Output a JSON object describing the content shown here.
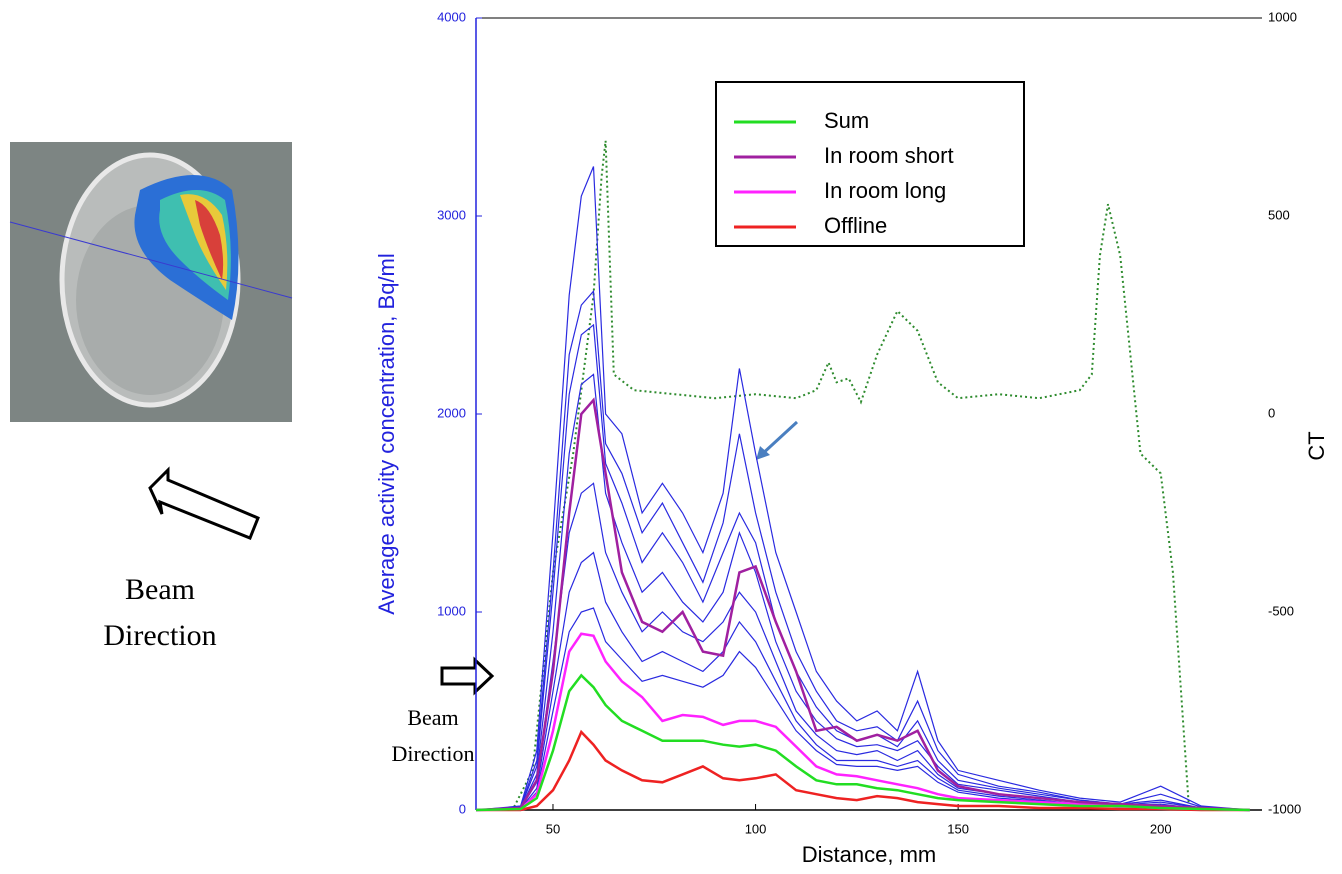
{
  "chart_data": {
    "type": "line",
    "y_label": "Average activity concentration, Bq/ml",
    "x_label": "Distance, mm",
    "y2_label": "CT",
    "y_axis_color": "#2222dd",
    "y2_axis_color": "#2e8b2e",
    "annotations": [
      {
        "lines": [
          "Beam",
          "Direction"
        ]
      },
      {
        "lines": [
          "Beam",
          "Direction"
        ]
      }
    ],
    "xlim": [
      31,
      225
    ],
    "xticks": [
      50,
      100,
      150,
      200
    ],
    "ylim": [
      0,
      4000
    ],
    "yticks": [
      0,
      1000,
      2000,
      3000,
      4000
    ],
    "y2lim": [
      -1000,
      1000
    ],
    "y2ticks": [
      -1000,
      -500,
      0,
      500,
      1000
    ],
    "x": [
      31,
      42,
      46,
      50,
      54,
      57,
      60,
      63,
      67,
      72,
      77,
      82,
      87,
      92,
      96,
      100,
      105,
      110,
      115,
      120,
      125,
      130,
      135,
      140,
      145,
      150,
      160,
      170,
      180,
      190,
      200,
      210,
      222
    ],
    "series": [
      {
        "name": "Sum",
        "color": "#22dd22",
        "values": [
          0,
          5,
          60,
          300,
          600,
          680,
          620,
          530,
          450,
          400,
          350,
          350,
          350,
          330,
          320,
          330,
          300,
          220,
          150,
          130,
          130,
          110,
          100,
          80,
          60,
          50,
          40,
          30,
          20,
          20,
          10,
          5,
          0
        ]
      },
      {
        "name": "In room short",
        "color": "#a020a0",
        "values": [
          0,
          10,
          150,
          700,
          1500,
          2000,
          2070,
          1700,
          1200,
          950,
          900,
          1000,
          800,
          780,
          1200,
          1230,
          950,
          700,
          400,
          420,
          350,
          380,
          350,
          400,
          200,
          120,
          80,
          60,
          40,
          30,
          20,
          10,
          0
        ]
      },
      {
        "name": "In room long",
        "color": "#ff22ff",
        "values": [
          0,
          5,
          80,
          400,
          800,
          890,
          880,
          750,
          650,
          570,
          450,
          480,
          470,
          430,
          450,
          450,
          420,
          320,
          220,
          180,
          170,
          150,
          130,
          110,
          80,
          60,
          50,
          40,
          30,
          20,
          10,
          5,
          0
        ]
      },
      {
        "name": "Offline",
        "color": "#ee2222",
        "values": [
          0,
          0,
          20,
          100,
          250,
          394,
          330,
          250,
          200,
          150,
          140,
          180,
          220,
          160,
          150,
          160,
          180,
          100,
          80,
          60,
          50,
          70,
          60,
          40,
          30,
          20,
          20,
          10,
          10,
          5,
          5,
          0,
          0
        ]
      },
      {
        "color": "#2a2ae0",
        "values": [
          0,
          20,
          300,
          1400,
          2600,
          3100,
          3250,
          2000,
          1900,
          1500,
          1650,
          1500,
          1300,
          1600,
          2230,
          1800,
          1300,
          1000,
          700,
          550,
          450,
          500,
          400,
          700,
          350,
          200,
          150,
          100,
          60,
          40,
          120,
          20,
          0
        ]
      },
      {
        "color": "#2a2ae0",
        "values": [
          0,
          15,
          250,
          1200,
          2300,
          2550,
          2620,
          1850,
          1700,
          1400,
          1550,
          1350,
          1150,
          1450,
          1900,
          1500,
          1100,
          800,
          600,
          450,
          400,
          420,
          350,
          550,
          300,
          180,
          120,
          90,
          50,
          30,
          80,
          15,
          0
        ]
      },
      {
        "color": "#2a2ae0",
        "values": [
          0,
          12,
          220,
          1100,
          2100,
          2400,
          2450,
          1750,
          1550,
          1250,
          1400,
          1250,
          1050,
          1300,
          1500,
          1350,
          950,
          700,
          520,
          400,
          350,
          380,
          320,
          450,
          250,
          150,
          110,
          80,
          50,
          30,
          50,
          10,
          0
        ]
      },
      {
        "color": "#2a2ae0",
        "values": [
          0,
          10,
          180,
          900,
          1800,
          2150,
          2200,
          1600,
          1350,
          1100,
          1200,
          1050,
          950,
          1100,
          1400,
          1200,
          850,
          600,
          450,
          360,
          320,
          330,
          300,
          350,
          220,
          130,
          100,
          70,
          40,
          25,
          40,
          10,
          0
        ]
      },
      {
        "color": "#2a2ae0",
        "values": [
          0,
          8,
          140,
          750,
          1400,
          1600,
          1650,
          1300,
          1100,
          900,
          1000,
          900,
          850,
          950,
          1100,
          1000,
          750,
          500,
          380,
          300,
          280,
          300,
          250,
          300,
          180,
          110,
          80,
          60,
          40,
          20,
          30,
          5,
          0
        ]
      },
      {
        "color": "#2a2ae0",
        "values": [
          0,
          6,
          110,
          600,
          1100,
          1250,
          1300,
          1050,
          900,
          750,
          800,
          750,
          700,
          800,
          950,
          850,
          650,
          450,
          330,
          250,
          250,
          250,
          220,
          250,
          160,
          100,
          70,
          50,
          30,
          20,
          20,
          5,
          0
        ]
      },
      {
        "color": "#2a2ae0",
        "values": [
          0,
          5,
          90,
          500,
          900,
          1000,
          1020,
          850,
          760,
          650,
          680,
          650,
          620,
          680,
          800,
          720,
          560,
          400,
          300,
          230,
          220,
          220,
          200,
          220,
          140,
          90,
          60,
          45,
          30,
          15,
          15,
          5,
          0
        ]
      },
      {
        "color": "#2e8b2e",
        "axis": "y2",
        "dotted": true,
        "x": [
          31,
          40,
          45,
          50,
          55,
          60,
          62,
          63,
          65,
          70,
          80,
          90,
          100,
          110,
          115,
          118,
          120,
          123,
          126,
          130,
          135,
          138,
          140,
          145,
          150,
          160,
          170,
          180,
          183,
          185,
          187,
          190,
          195,
          200,
          203,
          207,
          210,
          222
        ],
        "values": [
          -1000,
          -1000,
          -900,
          -400,
          -100,
          300,
          600,
          690,
          100,
          60,
          50,
          40,
          50,
          40,
          60,
          130,
          80,
          90,
          30,
          150,
          260,
          230,
          210,
          80,
          40,
          50,
          40,
          60,
          100,
          400,
          530,
          400,
          -100,
          -150,
          -400,
          -1000,
          -1000,
          -1000
        ]
      }
    ]
  }
}
